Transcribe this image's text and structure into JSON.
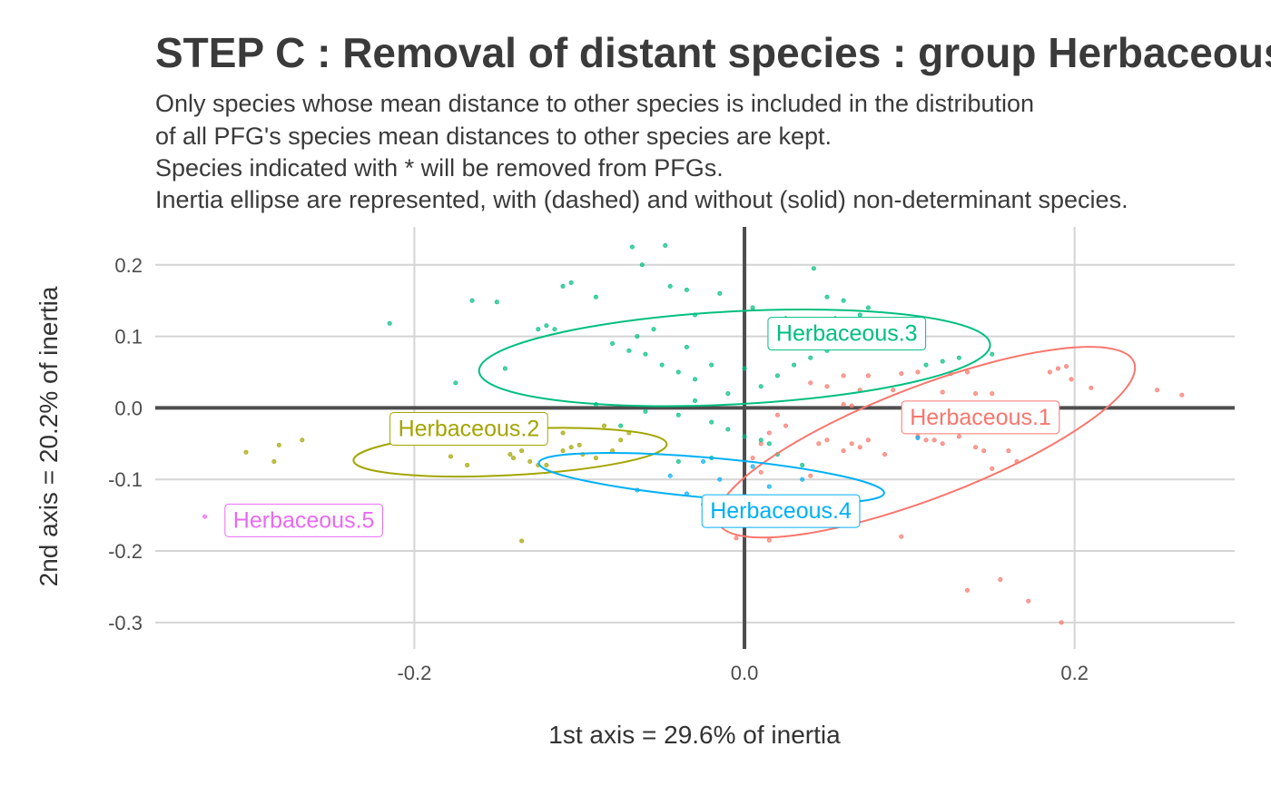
{
  "chart_data": {
    "type": "scatter",
    "title": "STEP C : Removal of distant species : group Herbaceous",
    "subtitle": [
      "Only species whose mean distance to other species is included in the distribution",
      "of all PFG's species mean distances to other species are kept.",
      "Species indicated with * will be removed from PFGs.",
      "Inertia ellipse are represented, with (dashed) and without (solid) non-determinant species."
    ],
    "xlabel": "1st axis = 29.6% of inertia",
    "ylabel": "2nd axis = 20.2% of inertia",
    "xlim": [
      -0.357,
      0.297
    ],
    "ylim": [
      -0.337,
      0.253
    ],
    "xticks": [
      -0.2,
      0.0,
      0.2
    ],
    "xtick_labels": [
      "-0.2",
      "0.0",
      "0.2"
    ],
    "yticks": [
      0.2,
      0.1,
      0.0,
      -0.1,
      -0.2,
      -0.3
    ],
    "ytick_labels": [
      "0.2",
      "0.1",
      "0.0",
      "-0.1",
      "-0.2",
      "-0.3"
    ],
    "grid": true,
    "legend": "none",
    "series": [
      {
        "name": "Herbaceous.1",
        "color": "#F8766D",
        "label_pos": [
          0.143,
          -0.012
        ],
        "ellipse": {
          "cx": 0.11,
          "cy": -0.048,
          "rx": 0.135,
          "ry": 0.078,
          "angle_deg": -21
        },
        "points": [
          [
            0.19,
            0.055
          ],
          [
            0.195,
            0.058
          ],
          [
            0.185,
            0.05
          ],
          [
            0.198,
            0.04
          ],
          [
            0.21,
            0.028
          ],
          [
            0.25,
            0.025
          ],
          [
            0.265,
            0.018
          ],
          [
            0.095,
            0.048
          ],
          [
            0.105,
            0.05
          ],
          [
            0.125,
            0.048
          ],
          [
            0.135,
            0.05
          ],
          [
            0.075,
            0.045
          ],
          [
            0.06,
            0.045
          ],
          [
            0.04,
            0.035
          ],
          [
            0.05,
            0.03
          ],
          [
            0.07,
            0.025
          ],
          [
            0.09,
            0.025
          ],
          [
            0.12,
            0.022
          ],
          [
            0.14,
            0.02
          ],
          [
            0.15,
            0.02
          ],
          [
            0.06,
            0.005
          ],
          [
            0.065,
            0.003
          ],
          [
            0.1,
            -0.03
          ],
          [
            0.105,
            -0.04
          ],
          [
            0.11,
            -0.045
          ],
          [
            0.115,
            -0.045
          ],
          [
            0.12,
            -0.05
          ],
          [
            0.13,
            -0.04
          ],
          [
            0.14,
            -0.055
          ],
          [
            0.145,
            -0.06
          ],
          [
            0.16,
            -0.06
          ],
          [
            0.165,
            -0.075
          ],
          [
            0.15,
            -0.085
          ],
          [
            0.06,
            -0.06
          ],
          [
            0.065,
            -0.05
          ],
          [
            0.07,
            -0.055
          ],
          [
            0.075,
            -0.045
          ],
          [
            0.05,
            -0.045
          ],
          [
            0.045,
            -0.05
          ],
          [
            0.085,
            -0.065
          ],
          [
            0.04,
            -0.095
          ],
          [
            0.02,
            -0.01
          ],
          [
            0.025,
            -0.025
          ],
          [
            0.015,
            -0.035
          ],
          [
            0.01,
            -0.05
          ],
          [
            0.005,
            -0.07
          ],
          [
            0.01,
            -0.09
          ],
          [
            0.015,
            -0.185
          ],
          [
            -0.005,
            -0.182
          ],
          [
            0.095,
            -0.18
          ],
          [
            0.135,
            -0.255
          ],
          [
            0.155,
            -0.24
          ],
          [
            0.172,
            -0.27
          ],
          [
            0.192,
            -0.3
          ]
        ]
      },
      {
        "name": "Herbaceous.2",
        "color": "#A3A500",
        "label_pos": [
          -0.167,
          -0.028
        ],
        "ellipse": {
          "cx": -0.142,
          "cy": -0.062,
          "rx": 0.095,
          "ry": 0.032,
          "angle_deg": -3
        },
        "points": [
          [
            -0.302,
            -0.062
          ],
          [
            -0.282,
            -0.052
          ],
          [
            -0.285,
            -0.075
          ],
          [
            -0.268,
            -0.045
          ],
          [
            -0.178,
            -0.068
          ],
          [
            -0.168,
            -0.08
          ],
          [
            -0.14,
            -0.07
          ],
          [
            -0.135,
            -0.06
          ],
          [
            -0.13,
            -0.075
          ],
          [
            -0.125,
            -0.08
          ],
          [
            -0.12,
            -0.08
          ],
          [
            -0.11,
            -0.06
          ],
          [
            -0.105,
            -0.055
          ],
          [
            -0.1,
            -0.052
          ],
          [
            -0.098,
            -0.065
          ],
          [
            -0.09,
            -0.07
          ],
          [
            -0.08,
            -0.06
          ],
          [
            -0.075,
            -0.045
          ],
          [
            -0.07,
            -0.035
          ],
          [
            -0.085,
            -0.025
          ],
          [
            -0.142,
            -0.065
          ],
          [
            -0.135,
            -0.186
          ],
          [
            -0.17,
            -0.03
          ],
          [
            -0.125,
            -0.04
          ],
          [
            -0.11,
            -0.035
          ]
        ]
      },
      {
        "name": "Herbaceous.3",
        "color": "#00BF7D",
        "label_pos": [
          0.062,
          0.105
        ],
        "ellipse": {
          "cx": -0.006,
          "cy": 0.07,
          "rx": 0.155,
          "ry": 0.065,
          "angle_deg": -3
        },
        "points": [
          [
            -0.068,
            0.225
          ],
          [
            -0.048,
            0.227
          ],
          [
            -0.062,
            0.2
          ],
          [
            -0.105,
            0.175
          ],
          [
            -0.11,
            0.17
          ],
          [
            -0.045,
            0.17
          ],
          [
            -0.035,
            0.165
          ],
          [
            -0.015,
            0.16
          ],
          [
            -0.09,
            0.155
          ],
          [
            -0.15,
            0.148
          ],
          [
            -0.165,
            0.15
          ],
          [
            -0.12,
            0.115
          ],
          [
            -0.115,
            0.11
          ],
          [
            -0.125,
            0.11
          ],
          [
            -0.145,
            0.055
          ],
          [
            -0.175,
            0.035
          ],
          [
            -0.215,
            0.118
          ],
          [
            -0.08,
            0.09
          ],
          [
            -0.07,
            0.08
          ],
          [
            -0.06,
            0.075
          ],
          [
            -0.05,
            0.06
          ],
          [
            -0.04,
            0.05
          ],
          [
            -0.03,
            0.04
          ],
          [
            -0.02,
            0.06
          ],
          [
            -0.01,
            0.02
          ],
          [
            0.0,
            0.055
          ],
          [
            0.01,
            0.03
          ],
          [
            0.02,
            0.045
          ],
          [
            0.03,
            0.06
          ],
          [
            0.04,
            0.07
          ],
          [
            0.05,
            0.08
          ],
          [
            0.06,
            0.09
          ],
          [
            0.065,
            0.12
          ],
          [
            0.07,
            0.13
          ],
          [
            0.075,
            0.14
          ],
          [
            0.08,
            0.1
          ],
          [
            0.095,
            0.088
          ],
          [
            0.105,
            0.085
          ],
          [
            0.11,
            0.06
          ],
          [
            0.12,
            0.065
          ],
          [
            0.13,
            0.07
          ],
          [
            0.15,
            0.075
          ],
          [
            0.042,
            0.195
          ],
          [
            0.05,
            0.155
          ],
          [
            0.055,
            0.125
          ],
          [
            0.06,
            0.15
          ],
          [
            -0.09,
            0.005
          ],
          [
            -0.075,
            -0.025
          ],
          [
            -0.06,
            -0.005
          ],
          [
            -0.04,
            -0.01
          ],
          [
            -0.03,
            0.01
          ],
          [
            -0.02,
            -0.02
          ],
          [
            -0.01,
            -0.03
          ],
          [
            0.0,
            -0.04
          ],
          [
            0.01,
            -0.045
          ],
          [
            0.015,
            -0.05
          ],
          [
            0.02,
            -0.065
          ],
          [
            -0.02,
            -0.07
          ],
          [
            -0.04,
            -0.075
          ],
          [
            0.035,
            -0.08
          ],
          [
            0.025,
            0.125
          ],
          [
            0.005,
            0.14
          ],
          [
            -0.03,
            0.13
          ],
          [
            -0.055,
            0.11
          ],
          [
            -0.065,
            0.1
          ],
          [
            -0.035,
            0.085
          ]
        ]
      },
      {
        "name": "Herbaceous.4",
        "color": "#00B0F6",
        "label_pos": [
          0.022,
          -0.143
        ],
        "ellipse": {
          "cx": -0.02,
          "cy": -0.098,
          "rx": 0.105,
          "ry": 0.028,
          "angle_deg": 5
        },
        "points": [
          [
            -0.045,
            -0.095
          ],
          [
            -0.025,
            -0.075
          ],
          [
            -0.065,
            -0.115
          ],
          [
            -0.015,
            -0.1
          ],
          [
            0.005,
            -0.082
          ],
          [
            0.015,
            -0.11
          ],
          [
            -0.035,
            -0.12
          ],
          [
            -0.025,
            -0.135
          ],
          [
            0.035,
            -0.1
          ],
          [
            0.105,
            -0.042
          ]
        ]
      },
      {
        "name": "Herbaceous.5",
        "color": "#E76BF3",
        "label_pos": [
          -0.267,
          -0.156
        ],
        "ellipse": null,
        "points": [
          [
            -0.327,
            -0.152
          ]
        ]
      }
    ]
  }
}
